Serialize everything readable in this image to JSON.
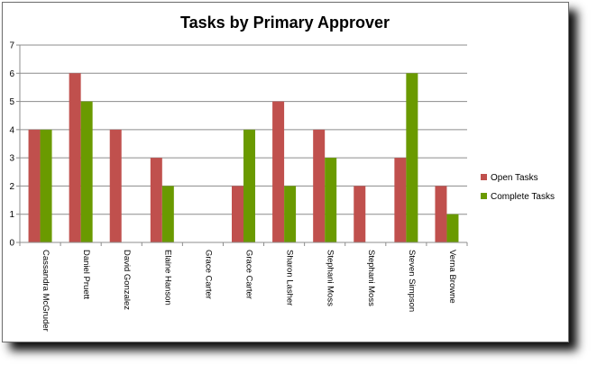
{
  "chart_data": {
    "type": "bar",
    "title": "Tasks by Primary Approver",
    "xlabel": "",
    "ylabel": "",
    "ylim": [
      0,
      7
    ],
    "yticks": [
      0,
      1,
      2,
      3,
      4,
      5,
      6,
      7
    ],
    "grid": true,
    "legend_position": "right",
    "categories": [
      "Cassandra McGruder",
      "Daniel Pruett",
      "David Gonzalez",
      "Elaine Hanson",
      "Grace Carter",
      "Grace Carter",
      "Sharon Lasher",
      "Stephani Moss",
      "Stephani Moss",
      "Steven Simpson",
      "Verna Browne"
    ],
    "series": [
      {
        "name": "Open Tasks",
        "color": "#c0504d",
        "values": [
          4,
          6,
          4,
          3,
          0,
          2,
          5,
          4,
          2,
          3,
          2
        ]
      },
      {
        "name": "Complete Tasks",
        "color": "#6a9a00",
        "values": [
          4,
          5,
          0,
          2,
          0,
          4,
          2,
          3,
          0,
          6,
          1
        ]
      }
    ]
  }
}
